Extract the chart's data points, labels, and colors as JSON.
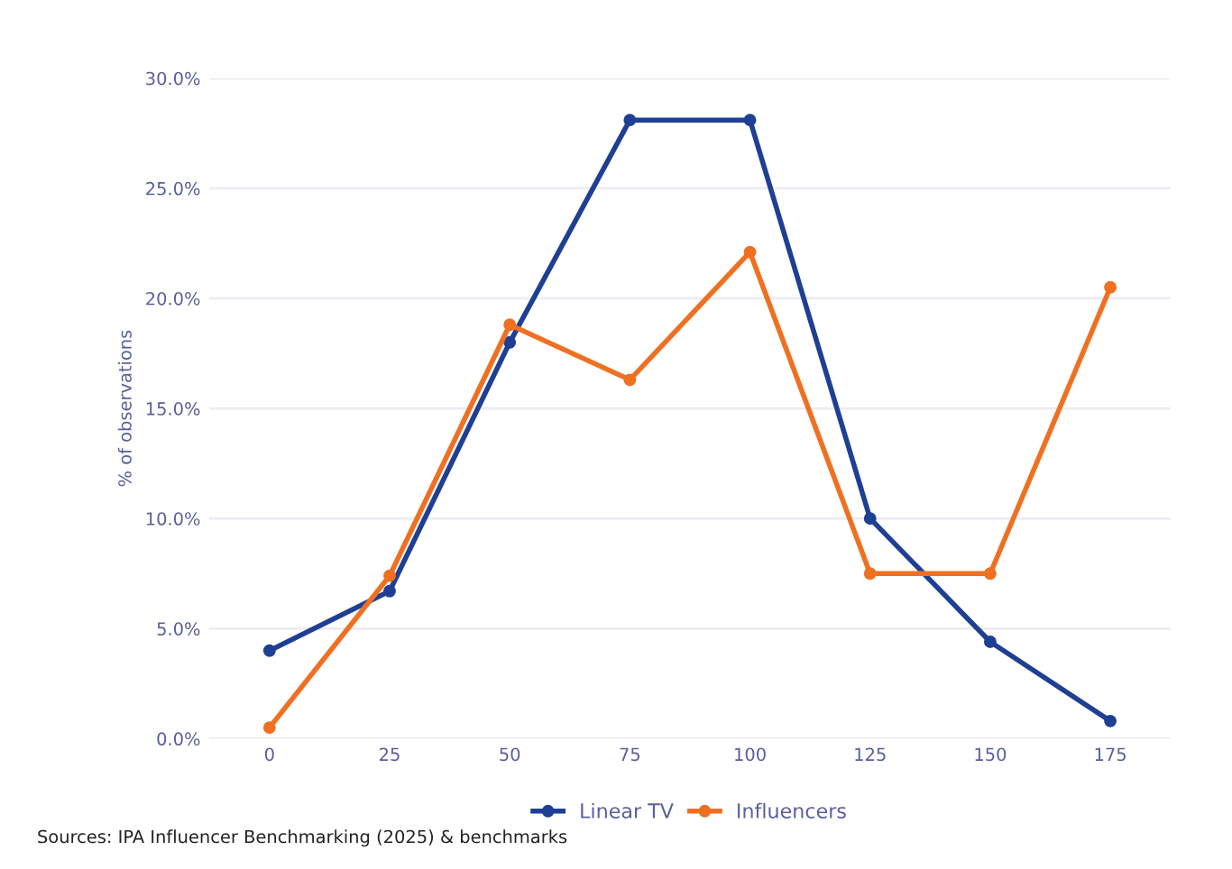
{
  "chart_data": {
    "type": "line",
    "ylabel": "% of observations",
    "categories": [
      "0",
      "25",
      "50",
      "75",
      "100",
      "125",
      "150",
      "175"
    ],
    "series": [
      {
        "name": "Linear TV",
        "color": "#1f3f94",
        "values": [
          4.0,
          6.7,
          18.0,
          28.1,
          28.1,
          10.0,
          4.4,
          0.8
        ]
      },
      {
        "name": "Influencers",
        "color": "#f07022",
        "values": [
          0.5,
          7.4,
          18.8,
          16.3,
          22.1,
          7.5,
          7.5,
          20.5
        ]
      }
    ],
    "ylim": [
      0,
      30
    ],
    "yticks": [
      {
        "value": 0,
        "label": "0.0%"
      },
      {
        "value": 5,
        "label": "5.0%"
      },
      {
        "value": 10,
        "label": "10.0%"
      },
      {
        "value": 15,
        "label": "15.0%"
      },
      {
        "value": 20,
        "label": "20.0%"
      },
      {
        "value": 25,
        "label": "25.0%"
      },
      {
        "value": 30,
        "label": "30.0%"
      }
    ],
    "grid": "y",
    "legend": "bottom",
    "marker": "circle",
    "line_style": "solid",
    "annotations": [
      "Sources: IPA Influencer Benchmarking (2025) & benchmarks"
    ]
  }
}
